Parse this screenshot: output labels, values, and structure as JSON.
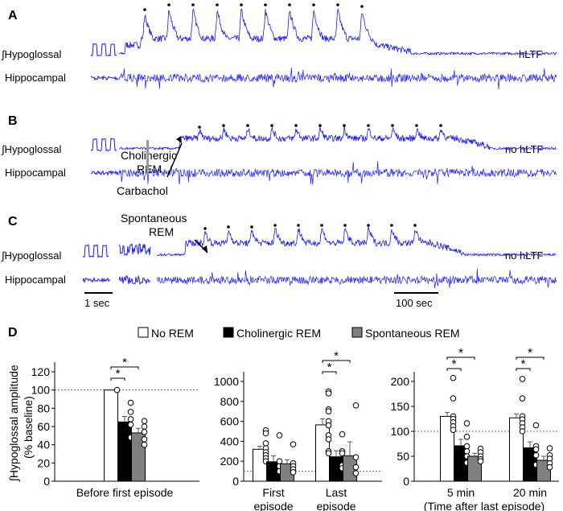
{
  "colors": {
    "trace": "#1a1aff",
    "chol": "#000000",
    "spont": "#808080",
    "none": "#ffffff"
  },
  "panels": [
    {
      "letter": "A",
      "hypo_label": "∫Hypoglossal",
      "hippo_label": "Hippocampal",
      "result": "hLTF",
      "episodes": 10
    },
    {
      "letter": "B",
      "hypo_label": "∫Hypoglossal",
      "hippo_label": "Hippocampal",
      "result": "no hLTF",
      "episodes": 11,
      "annot": [
        "Cholinergic",
        "REM"
      ],
      "drug": "Carbachol"
    },
    {
      "letter": "C",
      "hypo_label": "∫Hypoglossal",
      "hippo_label": "Hippocampal",
      "result": "no hLTF",
      "episodes": 10,
      "annot": [
        "Spontaneous",
        "REM"
      ]
    }
  ],
  "scale": {
    "short": "1 sec",
    "long": "100 sec"
  },
  "panel_d": {
    "letter": "D",
    "ylabel": [
      "∫Hypoglossal amplitude",
      "(% baseline)"
    ],
    "xnote": "(Time after last episode)"
  },
  "legend": [
    "No REM",
    "Cholinergic REM",
    "Spontaneous REM"
  ],
  "chart_data": [
    {
      "type": "bar",
      "title": "",
      "ylim": [
        0,
        120
      ],
      "yticks": [
        0,
        20,
        40,
        60,
        80,
        100,
        120
      ],
      "reference": 100,
      "categories": [
        "Before first episode"
      ],
      "series": [
        {
          "name": "No REM",
          "values": [
            100
          ],
          "err": [
            0
          ],
          "points": [
            [
              100
            ]
          ]
        },
        {
          "name": "Cholinergic REM",
          "values": [
            65
          ],
          "err": [
            6
          ],
          "points": [
            [
              86,
              76,
              68,
              62,
              48
            ]
          ]
        },
        {
          "name": "Spontaneous REM",
          "values": [
            53
          ],
          "err": [
            5
          ],
          "points": [
            [
              66,
              60,
              54,
              46,
              40
            ]
          ]
        }
      ],
      "sig": [
        [
          0,
          1,
          "*"
        ],
        [
          0,
          2,
          "*"
        ]
      ],
      "sig_cats": [
        0
      ]
    },
    {
      "type": "bar",
      "title": "",
      "ylim": [
        0,
        1000
      ],
      "yticks": [
        0,
        200,
        400,
        600,
        800,
        1000
      ],
      "reference": 100,
      "categories": [
        "First|episode",
        "Last|episode"
      ],
      "series": [
        {
          "name": "No REM",
          "values": [
            320,
            565
          ],
          "err": [
            30,
            60
          ],
          "points": [
            [
              510,
              480,
              380,
              330,
              290,
              260,
              230,
              200
            ],
            [
              900,
              880,
              720,
              700,
              600,
              560,
              460,
              420,
              300,
              280
            ]
          ]
        },
        {
          "name": "Cholinergic REM",
          "values": [
            195,
            245
          ],
          "err": [
            60,
            60
          ],
          "points": [
            [
              460,
              200,
              150,
              100
            ],
            [
              470,
              300,
              280,
              160,
              130
            ]
          ]
        },
        {
          "name": "Spontaneous REM",
          "values": [
            175,
            255
          ],
          "err": [
            40,
            140
          ],
          "points": [
            [
              370,
              180,
              150,
              120,
              90
            ],
            [
              760,
              240,
              140,
              80
            ]
          ]
        }
      ],
      "sig": [
        [
          0,
          1,
          "*"
        ],
        [
          0,
          2,
          "*"
        ]
      ],
      "sig_cats": [
        1
      ]
    },
    {
      "type": "bar",
      "title": "",
      "ylim": [
        0,
        200
      ],
      "yticks": [
        0,
        50,
        100,
        150,
        200
      ],
      "reference": 100,
      "categories": [
        "5 min",
        "20 min"
      ],
      "series": [
        {
          "name": "No REM",
          "values": [
            130,
            127
          ],
          "err": [
            8,
            8
          ],
          "points": [
            [
              207,
              166,
              130,
              125,
              118,
              110,
              103
            ],
            [
              205,
              166,
              130,
              124,
              116,
              108,
              100
            ]
          ]
        },
        {
          "name": "Cholinergic REM",
          "values": [
            71,
            67
          ],
          "err": [
            13,
            12
          ],
          "points": [
            [
              116,
              89,
              70,
              60,
              50,
              37
            ],
            [
              112,
              70,
              64,
              52,
              33
            ]
          ]
        },
        {
          "name": "Spontaneous REM",
          "values": [
            50,
            42
          ],
          "err": [
            6,
            8
          ],
          "points": [
            [
              65,
              58,
              50,
              44,
              40
            ],
            [
              66,
              52,
              45,
              36,
              28
            ]
          ]
        }
      ],
      "sig": [
        [
          0,
          1,
          "*"
        ],
        [
          0,
          2,
          "*"
        ]
      ],
      "sig_cats": [
        0,
        1
      ]
    }
  ]
}
